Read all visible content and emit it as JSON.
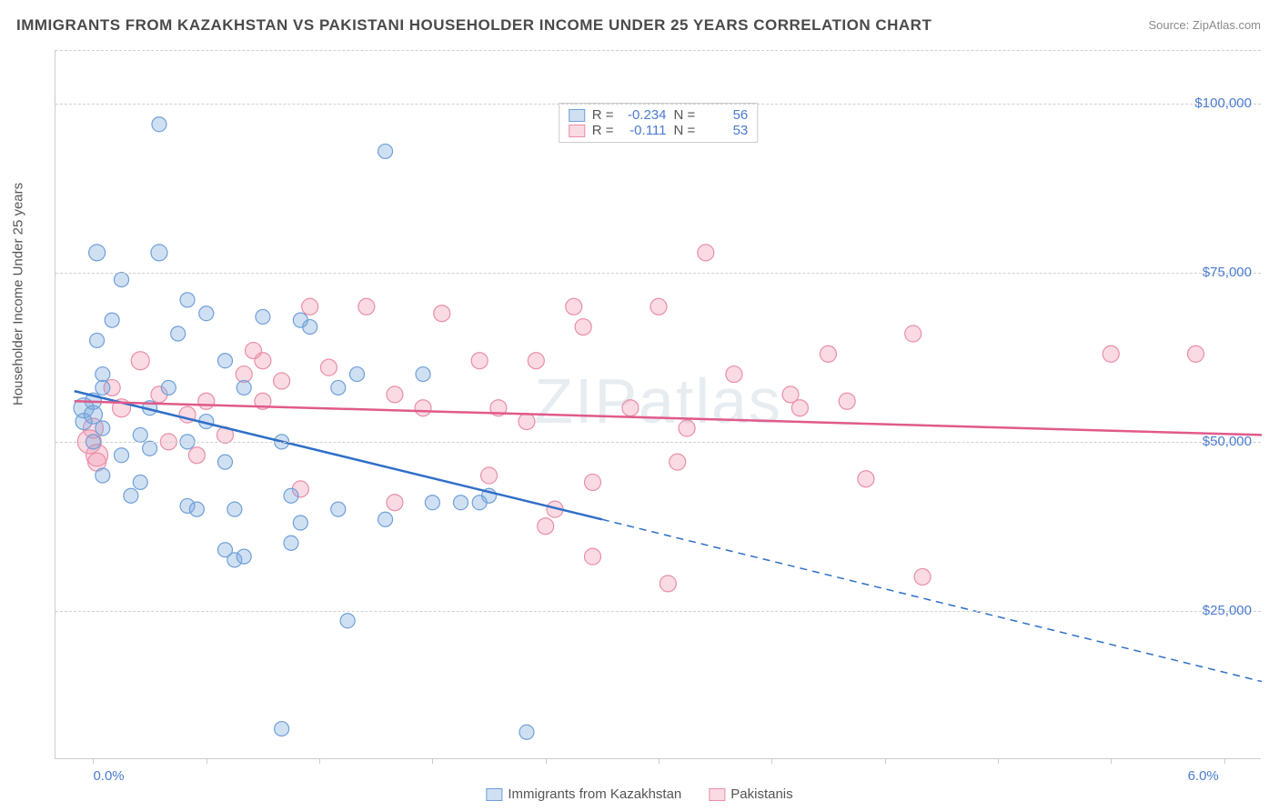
{
  "title": "IMMIGRANTS FROM KAZAKHSTAN VS PAKISTANI HOUSEHOLDER INCOME UNDER 25 YEARS CORRELATION CHART",
  "source": "Source: ZipAtlas.com",
  "watermark": "ZIPatlas",
  "y_axis_title": "Householder Income Under 25 years",
  "chart": {
    "type": "scatter",
    "xlim": [
      -0.2,
      6.2
    ],
    "ylim": [
      3000,
      108000
    ],
    "xticks_major": [
      0.0,
      6.0
    ],
    "xticks_minor": [
      0.6,
      1.2,
      1.8,
      2.4,
      3.0,
      3.6,
      4.2,
      4.8,
      5.4
    ],
    "yticks": [
      25000,
      50000,
      75000,
      100000
    ],
    "ytick_labels": [
      "$25,000",
      "$50,000",
      "$75,000",
      "$100,000"
    ],
    "xtick_labels": [
      "0.0%",
      "6.0%"
    ],
    "grid_color": "#d0d0d0",
    "background_color": "#ffffff",
    "axis_color": "#cccccc",
    "tick_label_color": "#4a7bd0",
    "series": [
      {
        "name": "Immigrants from Kazakhstan",
        "color_fill": "rgba(120,165,220,0.35)",
        "color_stroke": "#6fa0d8",
        "trend_color": "#2f6fc7",
        "R": "-0.234",
        "N": "56",
        "trend": {
          "x1": -0.1,
          "y1": 57500,
          "x_solid_end": 2.7,
          "y_solid_end": 38500,
          "x2": 6.2,
          "y2": 14500
        },
        "points": [
          {
            "x": 0.35,
            "y": 97000,
            "r": 8
          },
          {
            "x": 1.55,
            "y": 93000,
            "r": 8
          },
          {
            "x": 0.02,
            "y": 78000,
            "r": 9
          },
          {
            "x": 0.35,
            "y": 78000,
            "r": 9
          },
          {
            "x": 0.15,
            "y": 74000,
            "r": 8
          },
          {
            "x": 0.5,
            "y": 71000,
            "r": 8
          },
          {
            "x": 0.6,
            "y": 69000,
            "r": 8
          },
          {
            "x": 0.9,
            "y": 68500,
            "r": 8
          },
          {
            "x": 1.1,
            "y": 68000,
            "r": 8
          },
          {
            "x": 1.15,
            "y": 67000,
            "r": 8
          },
          {
            "x": 0.02,
            "y": 65000,
            "r": 8
          },
          {
            "x": 0.7,
            "y": 62000,
            "r": 8
          },
          {
            "x": 0.05,
            "y": 60000,
            "r": 8
          },
          {
            "x": 0.4,
            "y": 58000,
            "r": 8
          },
          {
            "x": 0.8,
            "y": 58000,
            "r": 8
          },
          {
            "x": 1.3,
            "y": 58000,
            "r": 8
          },
          {
            "x": 1.4,
            "y": 60000,
            "r": 8
          },
          {
            "x": 1.75,
            "y": 60000,
            "r": 8
          },
          {
            "x": 0.0,
            "y": 56000,
            "r": 9
          },
          {
            "x": -0.05,
            "y": 55000,
            "r": 11
          },
          {
            "x": 0.0,
            "y": 54000,
            "r": 10
          },
          {
            "x": -0.05,
            "y": 53000,
            "r": 9
          },
          {
            "x": 0.05,
            "y": 52000,
            "r": 8
          },
          {
            "x": 0.0,
            "y": 50000,
            "r": 8
          },
          {
            "x": 0.15,
            "y": 48000,
            "r": 8
          },
          {
            "x": 0.3,
            "y": 49000,
            "r": 8
          },
          {
            "x": 0.5,
            "y": 50000,
            "r": 8
          },
          {
            "x": 0.7,
            "y": 47000,
            "r": 8
          },
          {
            "x": 0.05,
            "y": 45000,
            "r": 8
          },
          {
            "x": 0.25,
            "y": 44000,
            "r": 8
          },
          {
            "x": 0.2,
            "y": 42000,
            "r": 8
          },
          {
            "x": 0.5,
            "y": 40500,
            "r": 8
          },
          {
            "x": 0.55,
            "y": 40000,
            "r": 8
          },
          {
            "x": 0.75,
            "y": 40000,
            "r": 8
          },
          {
            "x": 1.05,
            "y": 42000,
            "r": 8
          },
          {
            "x": 1.1,
            "y": 38000,
            "r": 8
          },
          {
            "x": 1.3,
            "y": 40000,
            "r": 8
          },
          {
            "x": 1.55,
            "y": 38500,
            "r": 8
          },
          {
            "x": 1.95,
            "y": 41000,
            "r": 8
          },
          {
            "x": 2.05,
            "y": 41000,
            "r": 8
          },
          {
            "x": 2.1,
            "y": 42000,
            "r": 8
          },
          {
            "x": 1.8,
            "y": 41000,
            "r": 8
          },
          {
            "x": 0.7,
            "y": 34000,
            "r": 8
          },
          {
            "x": 0.75,
            "y": 32500,
            "r": 8
          },
          {
            "x": 0.8,
            "y": 33000,
            "r": 8
          },
          {
            "x": 1.05,
            "y": 35000,
            "r": 8
          },
          {
            "x": 1.35,
            "y": 23500,
            "r": 8
          },
          {
            "x": 1.0,
            "y": 7500,
            "r": 8
          },
          {
            "x": 2.3,
            "y": 7000,
            "r": 8
          },
          {
            "x": 0.45,
            "y": 66000,
            "r": 8
          },
          {
            "x": 0.1,
            "y": 68000,
            "r": 8
          },
          {
            "x": 0.05,
            "y": 58000,
            "r": 8
          },
          {
            "x": 0.3,
            "y": 55000,
            "r": 8
          },
          {
            "x": 0.6,
            "y": 53000,
            "r": 8
          },
          {
            "x": 0.25,
            "y": 51000,
            "r": 8
          },
          {
            "x": 1.0,
            "y": 50000,
            "r": 8
          }
        ]
      },
      {
        "name": "Pakistanis",
        "color_fill": "rgba(240,150,175,0.35)",
        "color_stroke": "#e98fa8",
        "trend_color": "#e05a8a",
        "R": "-0.111",
        "N": "53",
        "trend": {
          "x1": -0.1,
          "y1": 56000,
          "x_solid_end": 6.2,
          "y_solid_end": 51000,
          "x2": 6.2,
          "y2": 51000
        },
        "points": [
          {
            "x": 3.25,
            "y": 78000,
            "r": 9
          },
          {
            "x": 0.25,
            "y": 62000,
            "r": 10
          },
          {
            "x": 0.9,
            "y": 62000,
            "r": 9
          },
          {
            "x": 0.8,
            "y": 60000,
            "r": 9
          },
          {
            "x": 0.9,
            "y": 56000,
            "r": 9
          },
          {
            "x": 1.0,
            "y": 59000,
            "r": 9
          },
          {
            "x": 1.15,
            "y": 70000,
            "r": 9
          },
          {
            "x": 1.45,
            "y": 70000,
            "r": 9
          },
          {
            "x": 1.85,
            "y": 69000,
            "r": 9
          },
          {
            "x": 1.6,
            "y": 57000,
            "r": 9
          },
          {
            "x": 1.75,
            "y": 55000,
            "r": 9
          },
          {
            "x": 2.05,
            "y": 62000,
            "r": 9
          },
          {
            "x": 2.15,
            "y": 55000,
            "r": 9
          },
          {
            "x": 2.3,
            "y": 53000,
            "r": 9
          },
          {
            "x": 2.55,
            "y": 70000,
            "r": 9
          },
          {
            "x": 2.6,
            "y": 67000,
            "r": 9
          },
          {
            "x": 2.85,
            "y": 55000,
            "r": 9
          },
          {
            "x": 3.0,
            "y": 70000,
            "r": 9
          },
          {
            "x": 3.15,
            "y": 52000,
            "r": 9
          },
          {
            "x": 3.1,
            "y": 47000,
            "r": 9
          },
          {
            "x": 2.1,
            "y": 45000,
            "r": 9
          },
          {
            "x": 2.45,
            "y": 40000,
            "r": 9
          },
          {
            "x": 2.4,
            "y": 37500,
            "r": 9
          },
          {
            "x": 2.65,
            "y": 44000,
            "r": 9
          },
          {
            "x": 1.6,
            "y": 41000,
            "r": 9
          },
          {
            "x": 1.1,
            "y": 43000,
            "r": 9
          },
          {
            "x": 2.65,
            "y": 33000,
            "r": 9
          },
          {
            "x": 3.05,
            "y": 29000,
            "r": 9
          },
          {
            "x": 3.7,
            "y": 57000,
            "r": 9
          },
          {
            "x": 3.75,
            "y": 55000,
            "r": 9
          },
          {
            "x": 3.9,
            "y": 63000,
            "r": 9
          },
          {
            "x": 4.0,
            "y": 56000,
            "r": 9
          },
          {
            "x": 4.1,
            "y": 44500,
            "r": 9
          },
          {
            "x": 4.35,
            "y": 66000,
            "r": 9
          },
          {
            "x": 4.4,
            "y": 30000,
            "r": 9
          },
          {
            "x": 5.4,
            "y": 63000,
            "r": 9
          },
          {
            "x": 5.85,
            "y": 63000,
            "r": 9
          },
          {
            "x": 0.0,
            "y": 52000,
            "r": 11
          },
          {
            "x": -0.02,
            "y": 50000,
            "r": 13
          },
          {
            "x": 0.02,
            "y": 48000,
            "r": 12
          },
          {
            "x": 0.02,
            "y": 47000,
            "r": 10
          },
          {
            "x": 0.4,
            "y": 50000,
            "r": 9
          },
          {
            "x": 0.5,
            "y": 54000,
            "r": 9
          },
          {
            "x": 0.6,
            "y": 56000,
            "r": 9
          },
          {
            "x": 0.35,
            "y": 57000,
            "r": 9
          },
          {
            "x": 0.55,
            "y": 48000,
            "r": 9
          },
          {
            "x": 0.7,
            "y": 51000,
            "r": 9
          },
          {
            "x": 0.85,
            "y": 63500,
            "r": 9
          },
          {
            "x": 1.25,
            "y": 61000,
            "r": 9
          },
          {
            "x": 2.35,
            "y": 62000,
            "r": 9
          },
          {
            "x": 3.4,
            "y": 60000,
            "r": 9
          },
          {
            "x": 0.15,
            "y": 55000,
            "r": 10
          },
          {
            "x": 0.1,
            "y": 58000,
            "r": 9
          }
        ]
      }
    ]
  },
  "legend": {
    "series1_label": "Immigrants from Kazakhstan",
    "series2_label": "Pakistanis"
  }
}
